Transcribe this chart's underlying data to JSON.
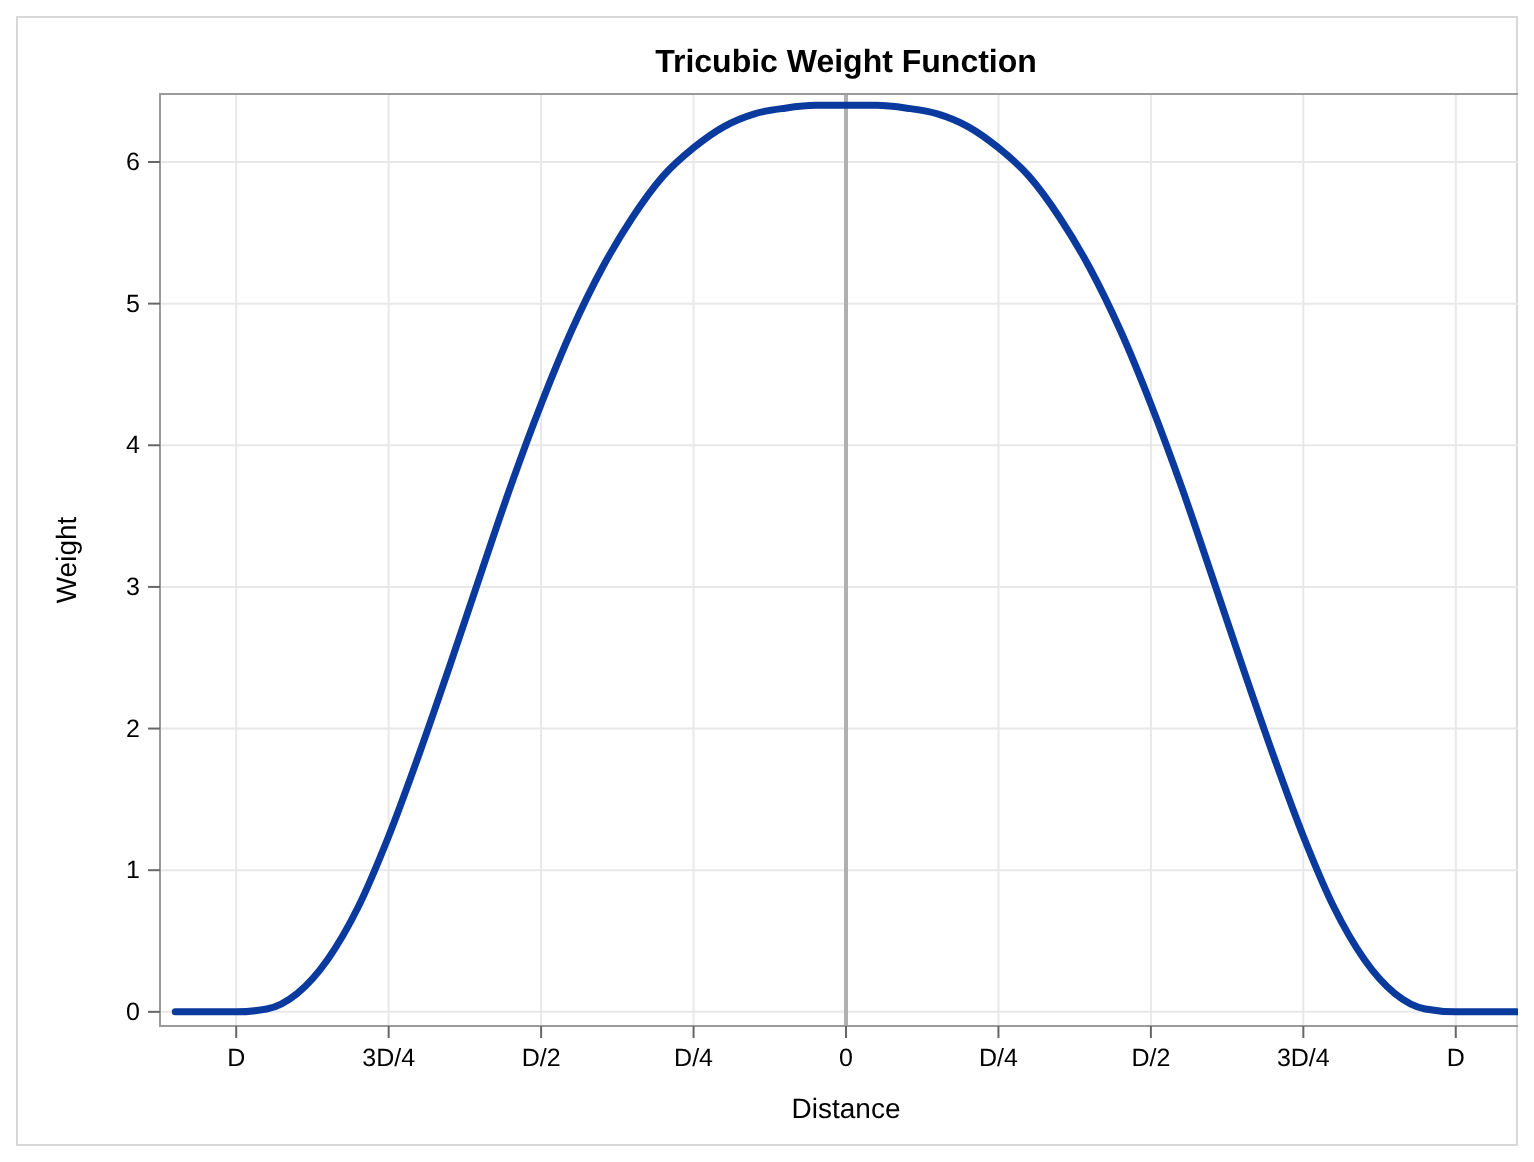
{
  "chart_data": {
    "type": "line",
    "title": "Tricubic Weight Function",
    "xlabel": "Distance",
    "ylabel": "Weight",
    "categories": [
      null,
      null,
      "D",
      null,
      null,
      null,
      null,
      "3D/4",
      null,
      null,
      null,
      null,
      "D/2",
      null,
      null,
      null,
      null,
      "D/4",
      null,
      null,
      null,
      null,
      "0",
      null,
      null,
      null,
      null,
      "D/4",
      null,
      null,
      null,
      null,
      "D/2",
      null,
      null,
      null,
      null,
      "3D/4",
      null,
      null,
      null,
      null,
      "D",
      null,
      null
    ],
    "series": [
      {
        "color": "#0b3a9e",
        "values": [
          0,
          0,
          0,
          0.02,
          0.13,
          0.37,
          0.74,
          1.24,
          1.82,
          2.44,
          3.08,
          3.71,
          4.29,
          4.81,
          5.25,
          5.61,
          5.9,
          6.1,
          6.25,
          6.34,
          6.38,
          6.4,
          6.4,
          6.4,
          6.38,
          6.34,
          6.25,
          6.1,
          5.9,
          5.61,
          5.25,
          4.81,
          4.29,
          3.71,
          3.08,
          2.44,
          1.82,
          1.24,
          0.74,
          0.37,
          0.13,
          0.02,
          0,
          0,
          0
        ]
      }
    ],
    "ylim": [
      -0.1,
      6.48
    ],
    "yticks": [
      0,
      1,
      2,
      3,
      4,
      5,
      6
    ],
    "grid": true,
    "marker": "none",
    "line_style": "solid",
    "ref_lines": [
      {
        "axis": "x",
        "value": "0",
        "color": "#b0b0b0"
      }
    ]
  }
}
